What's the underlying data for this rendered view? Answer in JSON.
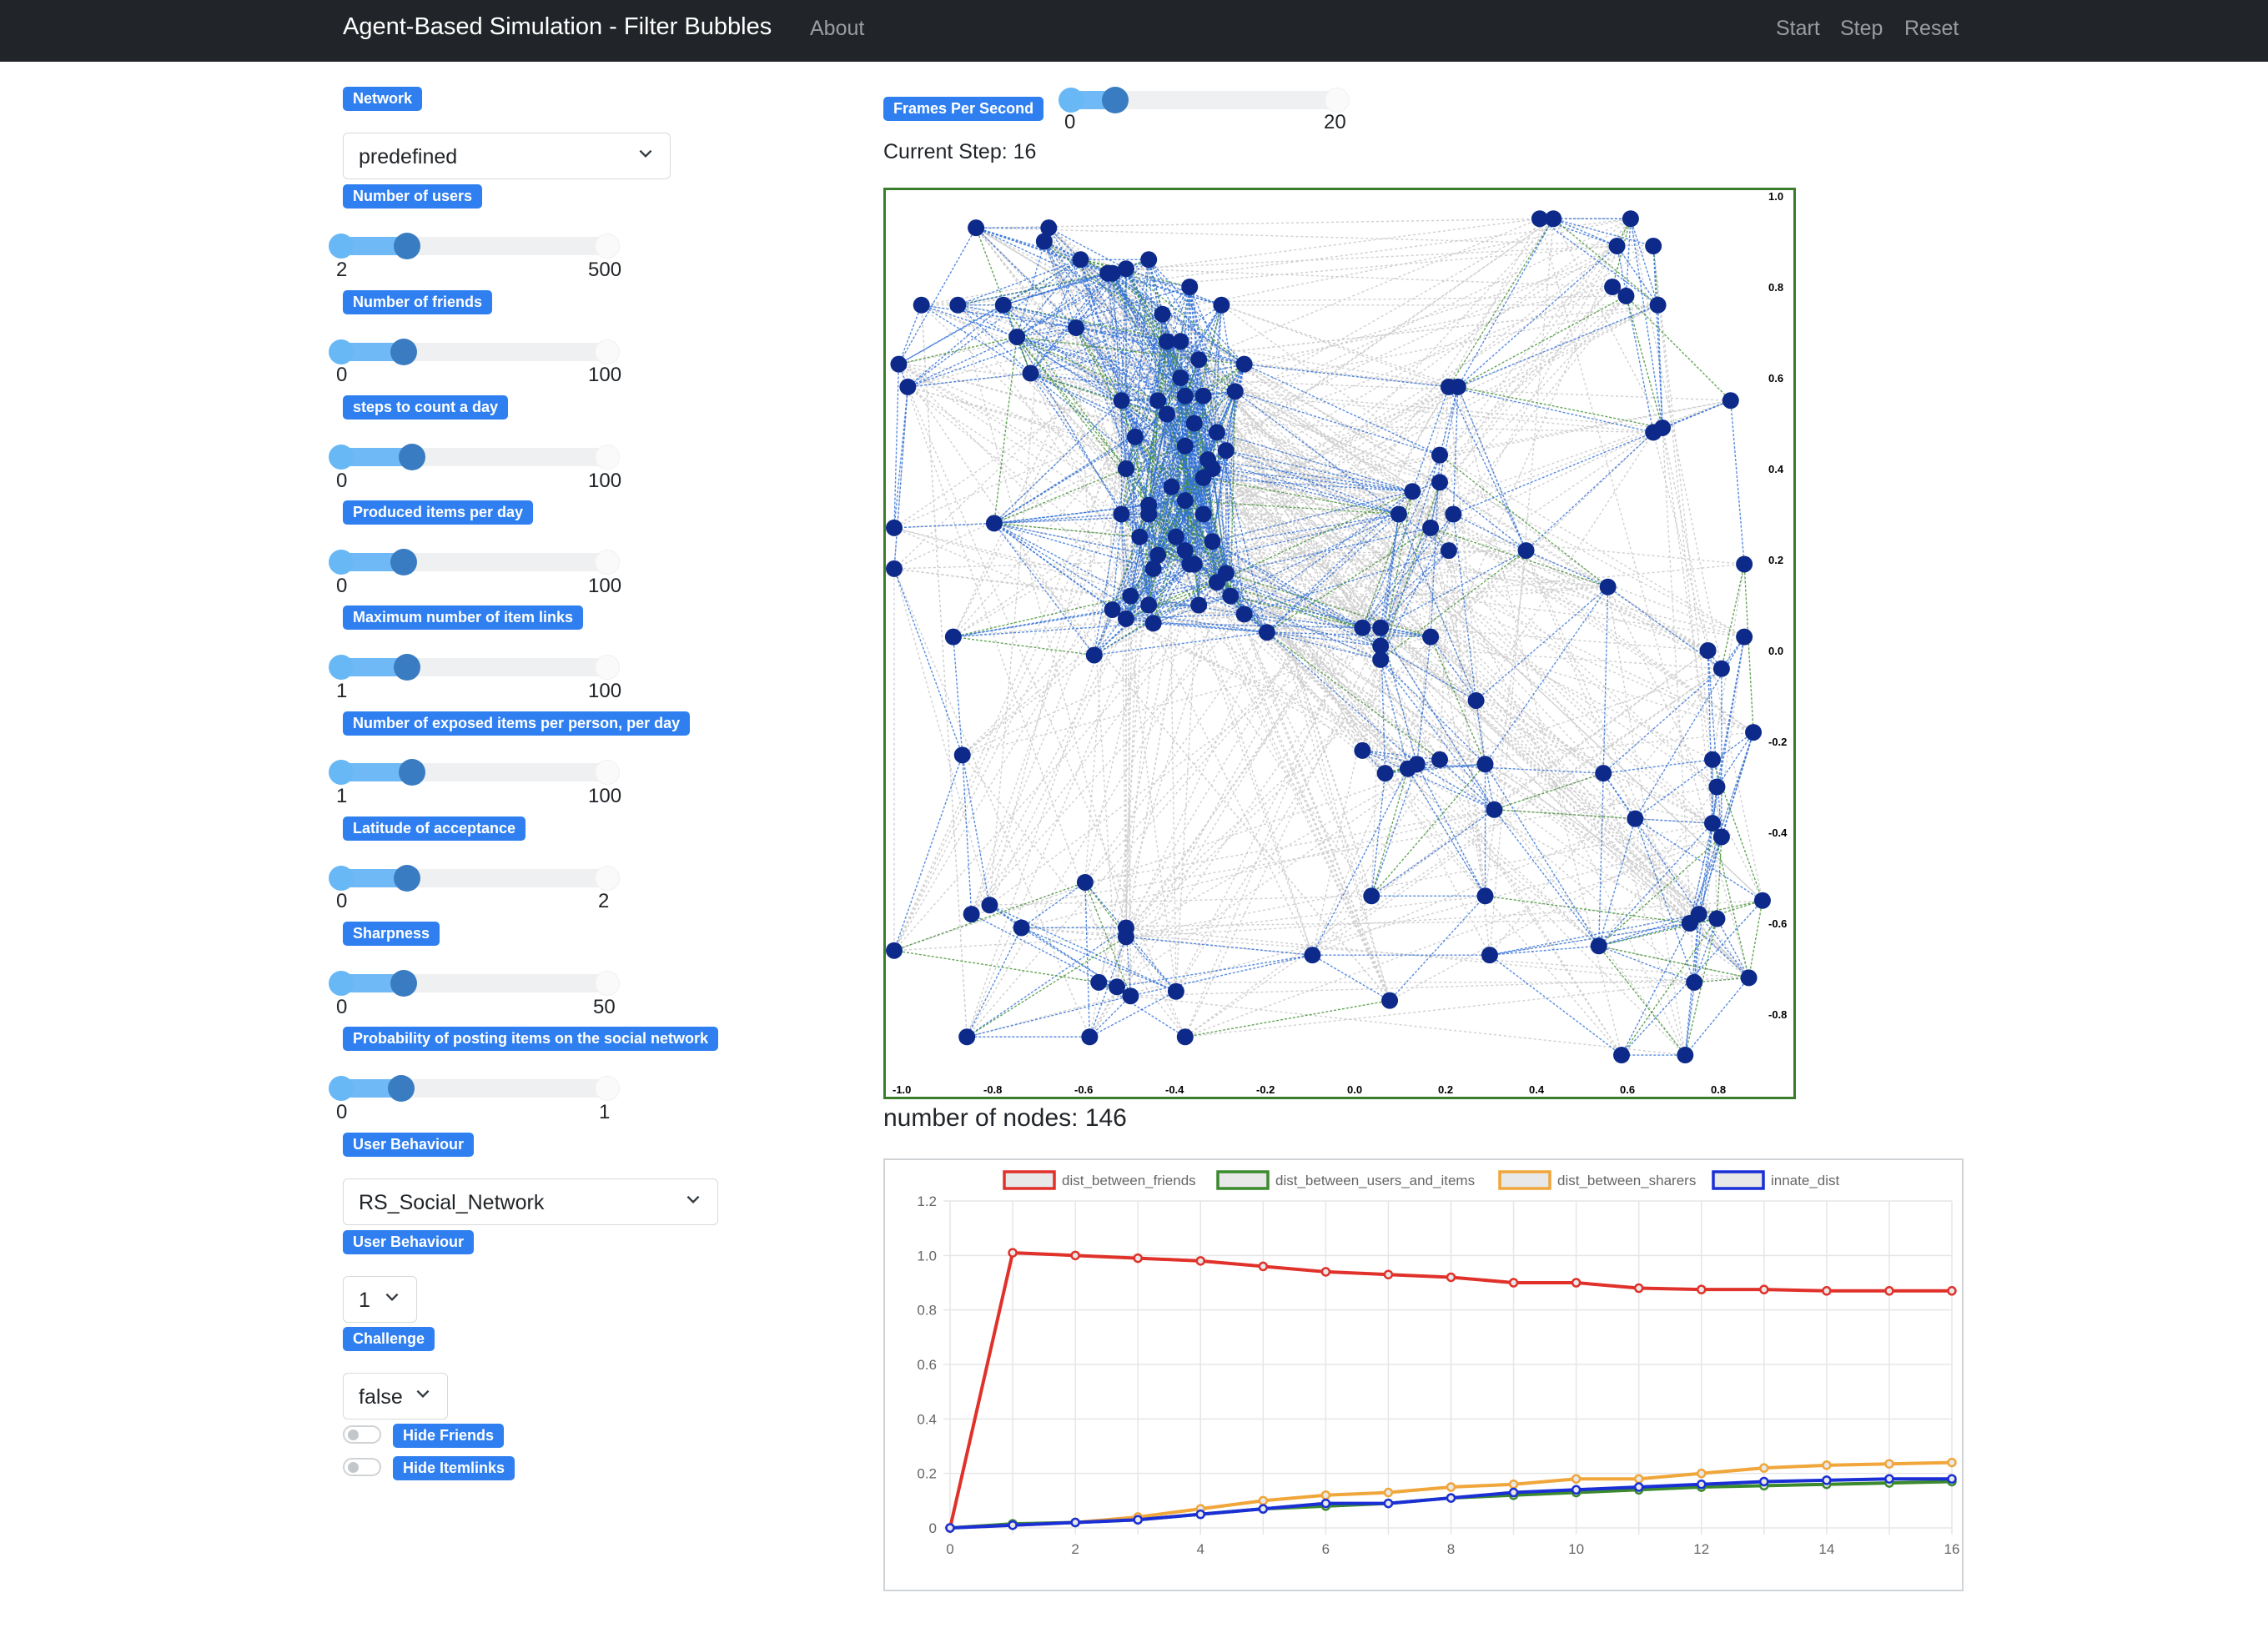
{
  "navbar": {
    "brand": "Agent-Based Simulation - Filter Bubbles",
    "about": "About",
    "start": "Start",
    "step": "Step",
    "reset": "Reset"
  },
  "controls": {
    "network": {
      "label": "Network",
      "value": "predefined"
    },
    "users": {
      "label": "Number of users",
      "min": "2",
      "max": "500",
      "fraction": 0.25
    },
    "friends": {
      "label": "Number of friends",
      "min": "0",
      "max": "100",
      "fraction": 0.24
    },
    "steps_day": {
      "label": "steps to count a day",
      "min": "0",
      "max": "100",
      "fraction": 0.27
    },
    "produced": {
      "label": "Produced items per day",
      "min": "0",
      "max": "100",
      "fraction": 0.24
    },
    "item_links": {
      "label": "Maximum number of item links",
      "min": "1",
      "max": "100",
      "fraction": 0.25
    },
    "exposed": {
      "label": "Number of exposed items per person, per day",
      "min": "1",
      "max": "100",
      "fraction": 0.27
    },
    "latitude": {
      "label": "Latitude of acceptance",
      "min": "0",
      "max": "2",
      "fraction": 0.25
    },
    "sharpness": {
      "label": "Sharpness",
      "min": "0",
      "max": "50",
      "fraction": 0.24
    },
    "posting": {
      "label": "Probability of posting items on the social network",
      "min": "0",
      "max": "1",
      "fraction": 0.23
    },
    "behaviour": {
      "label": "User Behaviour",
      "value": "RS_Social_Network"
    },
    "behaviour2": {
      "label": "User Behaviour",
      "value": "1"
    },
    "challenge": {
      "label": "Challenge",
      "value": "false"
    },
    "hide_friends": {
      "label": "Hide Friends",
      "checked": false
    },
    "hide_itemlinks": {
      "label": "Hide Itemlinks",
      "checked": false
    }
  },
  "fps": {
    "label": "Frames Per Second",
    "min": "0",
    "max": "20",
    "fraction": 0.17
  },
  "status": {
    "current_step": "Current Step: 16",
    "node_count": "number of nodes: 146"
  },
  "colors": {
    "node": "#0d2a8a",
    "friend_edge": "#2f6fd8",
    "item_edge": "#3f8f2f",
    "background_edge": "#cfcfcf",
    "dist_between_friends": "#e0312a",
    "dist_between_users_and_items": "#3b8a2e",
    "dist_between_sharers": "#f0a63a",
    "innate_dist": "#1a2fd6"
  },
  "network_axes": {
    "x_ticks": [
      "-1.0",
      "-0.8",
      "-0.6",
      "-0.4",
      "-0.2",
      "0.0",
      "0.2",
      "0.4",
      "0.6",
      "0.8"
    ],
    "y_ticks": [
      "1.0",
      "0.8",
      "0.6",
      "0.4",
      "0.2",
      "0.0",
      "-0.2",
      "-0.4",
      "-0.6",
      "-0.8"
    ]
  },
  "network_nodes": [
    [
      -0.82,
      0.93
    ],
    [
      -0.67,
      0.9
    ],
    [
      -0.59,
      0.86
    ],
    [
      -0.53,
      0.83
    ],
    [
      -0.49,
      0.84
    ],
    [
      -0.44,
      0.86
    ],
    [
      -0.35,
      0.8
    ],
    [
      -0.41,
      0.74
    ],
    [
      -0.37,
      0.68
    ],
    [
      -0.86,
      0.76
    ],
    [
      -0.76,
      0.76
    ],
    [
      -0.94,
      0.76
    ],
    [
      -0.7,
      0.61
    ],
    [
      -0.99,
      0.63
    ],
    [
      -0.97,
      0.58
    ],
    [
      -0.32,
      0.56
    ],
    [
      -0.23,
      0.63
    ],
    [
      -0.37,
      0.6
    ],
    [
      -0.36,
      0.56
    ],
    [
      -0.5,
      0.55
    ],
    [
      -0.42,
      0.55
    ],
    [
      -0.34,
      0.5
    ],
    [
      -0.29,
      0.48
    ],
    [
      -0.36,
      0.45
    ],
    [
      -0.47,
      0.47
    ],
    [
      -0.49,
      0.4
    ],
    [
      -0.32,
      0.38
    ],
    [
      -0.39,
      0.36
    ],
    [
      -0.44,
      0.32
    ],
    [
      -0.36,
      0.33
    ],
    [
      -0.27,
      0.44
    ],
    [
      -0.3,
      0.4
    ],
    [
      -0.32,
      0.3
    ],
    [
      -0.5,
      0.3
    ],
    [
      -0.44,
      0.3
    ],
    [
      -0.46,
      0.25
    ],
    [
      -0.42,
      0.21
    ],
    [
      -0.36,
      0.22
    ],
    [
      -0.38,
      0.25
    ],
    [
      -0.43,
      0.18
    ],
    [
      -0.35,
      0.19
    ],
    [
      -0.3,
      0.24
    ],
    [
      -0.27,
      0.17
    ],
    [
      -0.34,
      0.19
    ],
    [
      -0.44,
      0.1
    ],
    [
      -0.48,
      0.12
    ],
    [
      -0.52,
      0.09
    ],
    [
      -0.49,
      0.07
    ],
    [
      -0.33,
      0.1
    ],
    [
      -0.29,
      0.15
    ],
    [
      -0.26,
      0.12
    ],
    [
      -0.23,
      0.08
    ],
    [
      -0.18,
      0.04
    ],
    [
      -0.43,
      0.06
    ],
    [
      -0.56,
      -0.01
    ],
    [
      -0.78,
      0.28
    ],
    [
      -0.87,
      0.03
    ],
    [
      -0.85,
      -0.23
    ],
    [
      -1.0,
      0.27
    ],
    [
      -1.0,
      0.18
    ],
    [
      0.22,
      0.58
    ],
    [
      0.24,
      0.58
    ],
    [
      0.2,
      0.43
    ],
    [
      0.2,
      0.37
    ],
    [
      0.23,
      0.3
    ],
    [
      0.18,
      0.27
    ],
    [
      0.14,
      0.35
    ],
    [
      0.22,
      0.22
    ],
    [
      0.39,
      0.22
    ],
    [
      0.57,
      0.14
    ],
    [
      0.07,
      0.05
    ],
    [
      0.07,
      0.01
    ],
    [
      0.07,
      -0.02
    ],
    [
      0.18,
      0.03
    ],
    [
      0.28,
      -0.11
    ],
    [
      0.08,
      -0.27
    ],
    [
      0.03,
      -0.22
    ],
    [
      0.2,
      -0.24
    ],
    [
      0.15,
      -0.25
    ],
    [
      0.3,
      -0.25
    ],
    [
      0.32,
      -0.35
    ],
    [
      0.56,
      -0.27
    ],
    [
      0.42,
      0.95
    ],
    [
      0.45,
      0.95
    ],
    [
      0.62,
      0.95
    ],
    [
      0.67,
      0.89
    ],
    [
      0.59,
      0.89
    ],
    [
      0.58,
      0.8
    ],
    [
      0.61,
      0.78
    ],
    [
      0.68,
      0.76
    ],
    [
      0.84,
      0.55
    ],
    [
      0.67,
      0.48
    ],
    [
      0.69,
      0.49
    ],
    [
      0.87,
      0.19
    ],
    [
      0.79,
      0.0
    ],
    [
      0.82,
      -0.04
    ],
    [
      0.87,
      0.03
    ],
    [
      0.89,
      -0.18
    ],
    [
      0.8,
      -0.24
    ],
    [
      0.81,
      -0.3
    ],
    [
      0.63,
      -0.37
    ],
    [
      0.8,
      -0.38
    ],
    [
      0.82,
      -0.41
    ],
    [
      0.91,
      -0.55
    ],
    [
      0.75,
      -0.6
    ],
    [
      0.77,
      -0.58
    ],
    [
      0.81,
      -0.59
    ],
    [
      0.76,
      -0.73
    ],
    [
      0.88,
      -0.72
    ],
    [
      0.05,
      -0.54
    ],
    [
      -0.08,
      -0.67
    ],
    [
      0.31,
      -0.67
    ],
    [
      0.55,
      -0.65
    ],
    [
      0.09,
      -0.77
    ],
    [
      -0.83,
      -0.58
    ],
    [
      -0.79,
      -0.56
    ],
    [
      -0.72,
      -0.61
    ],
    [
      -0.58,
      -0.51
    ],
    [
      -0.49,
      -0.61
    ],
    [
      -0.49,
      -0.63
    ],
    [
      -0.55,
      -0.73
    ],
    [
      -0.51,
      -0.74
    ],
    [
      -0.48,
      -0.76
    ],
    [
      -0.38,
      -0.75
    ],
    [
      -0.57,
      -0.85
    ],
    [
      -0.36,
      -0.85
    ],
    [
      -0.84,
      -0.85
    ],
    [
      -1.0,
      -0.66
    ],
    [
      0.74,
      -0.89
    ],
    [
      0.6,
      -0.89
    ],
    [
      -0.66,
      0.93
    ],
    [
      -0.52,
      0.83
    ],
    [
      -0.28,
      0.76
    ],
    [
      -0.4,
      0.68
    ],
    [
      -0.33,
      0.64
    ],
    [
      -0.25,
      0.57
    ],
    [
      -0.4,
      0.52
    ],
    [
      -0.31,
      0.42
    ],
    [
      0.11,
      0.3
    ],
    [
      0.03,
      0.05
    ],
    [
      0.13,
      -0.26
    ],
    [
      0.3,
      -0.54
    ],
    [
      -0.73,
      0.69
    ],
    [
      -0.6,
      0.71
    ]
  ],
  "chart_data": {
    "type": "line",
    "x": [
      0,
      1,
      2,
      3,
      4,
      5,
      6,
      7,
      8,
      9,
      10,
      11,
      12,
      13,
      14,
      15,
      16
    ],
    "xlim": [
      0,
      16
    ],
    "ylim": [
      0,
      1.2
    ],
    "x_ticks": [
      "0",
      "2",
      "4",
      "6",
      "8",
      "10",
      "12",
      "14",
      "16"
    ],
    "y_ticks": [
      "0",
      "0.2",
      "0.4",
      "0.6",
      "0.8",
      "1.0",
      "1.2"
    ],
    "grid": true,
    "legend": "top",
    "series": [
      {
        "name": "dist_between_friends",
        "values": [
          0,
          1.01,
          1.0,
          0.99,
          0.98,
          0.96,
          0.94,
          0.93,
          0.92,
          0.9,
          0.9,
          0.88,
          0.875,
          0.875,
          0.87,
          0.87,
          0.87
        ]
      },
      {
        "name": "dist_between_users_and_items",
        "values": [
          0,
          0.015,
          0.02,
          0.03,
          0.05,
          0.07,
          0.08,
          0.09,
          0.11,
          0.12,
          0.13,
          0.14,
          0.15,
          0.155,
          0.16,
          0.165,
          0.17
        ]
      },
      {
        "name": "dist_between_sharers",
        "values": [
          0,
          0.01,
          0.02,
          0.04,
          0.07,
          0.1,
          0.12,
          0.13,
          0.15,
          0.16,
          0.18,
          0.18,
          0.2,
          0.22,
          0.23,
          0.235,
          0.24
        ]
      },
      {
        "name": "innate_dist",
        "values": [
          0,
          0.01,
          0.02,
          0.03,
          0.05,
          0.07,
          0.09,
          0.09,
          0.11,
          0.13,
          0.14,
          0.15,
          0.16,
          0.17,
          0.175,
          0.18,
          0.18
        ]
      }
    ]
  }
}
